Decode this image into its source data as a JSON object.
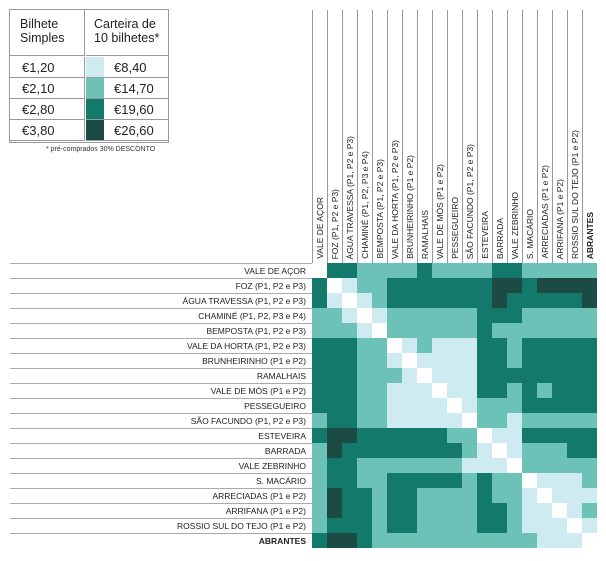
{
  "legend": {
    "header_single": "Bilhete Simples",
    "header_book": "Carteira de 10 bilhetes*",
    "tiers": [
      {
        "single": "€1,20",
        "book": "€8,40",
        "color": "#cdebf0"
      },
      {
        "single": "€2,10",
        "book": "€14,70",
        "color": "#6cc2b6"
      },
      {
        "single": "€2,80",
        "book": "€19,60",
        "color": "#137a6b"
      },
      {
        "single": "€3,80",
        "book": "€26,60",
        "color": "#1c4a45"
      }
    ],
    "note": "* pré-comprados 30% DESCONTO"
  },
  "stations": [
    {
      "label": "VALE DE AÇOR",
      "bold": false
    },
    {
      "label": "FOZ (P1, P2 e P3)",
      "bold": false
    },
    {
      "label": "ÁGUA TRAVESSA (P1, P2 e P3)",
      "bold": false
    },
    {
      "label": "CHAMINÉ (P1, P2, P3 e P4)",
      "bold": false
    },
    {
      "label": "BEMPOSTA (P1, P2 e P3)",
      "bold": false
    },
    {
      "label": "VALE DA HORTA (P1, P2 e P3)",
      "bold": false
    },
    {
      "label": "BRUNHEIRINHO (P1 e P2)",
      "bold": false
    },
    {
      "label": "RAMALHAIS",
      "bold": false
    },
    {
      "label": "VALE DE MÓS (P1 e P2)",
      "bold": false
    },
    {
      "label": "PESSEGUEIRO",
      "bold": false
    },
    {
      "label": "SÃO FACUNDO (P1, P2 e P3)",
      "bold": false
    },
    {
      "label": "ESTEVEIRA",
      "bold": false
    },
    {
      "label": "BARRADA",
      "bold": false
    },
    {
      "label": "VALE ZEBRINHO",
      "bold": false
    },
    {
      "label": "S. MACÁRIO",
      "bold": false
    },
    {
      "label": "ARRECIADAS (P1 e P2)",
      "bold": false
    },
    {
      "label": "ARRIFANA (P1 e P2)",
      "bold": false
    },
    {
      "label": "ROSSIO SUL DO TEJO (P1 e P2)",
      "bold": false
    },
    {
      "label": "ABRANTES",
      "bold": true
    }
  ],
  "fare_matrix": [
    [
      0,
      3,
      3,
      2,
      2,
      2,
      2,
      3,
      2,
      2,
      2,
      2,
      3,
      3,
      2,
      2,
      2,
      2,
      2
    ],
    [
      3,
      0,
      1,
      2,
      2,
      3,
      3,
      3,
      3,
      3,
      3,
      3,
      4,
      4,
      3,
      4,
      4,
      4,
      4
    ],
    [
      3,
      1,
      0,
      1,
      2,
      3,
      3,
      3,
      3,
      3,
      3,
      3,
      4,
      3,
      3,
      3,
      3,
      3,
      4
    ],
    [
      2,
      2,
      1,
      0,
      1,
      2,
      2,
      2,
      2,
      2,
      2,
      3,
      3,
      3,
      2,
      2,
      2,
      2,
      2
    ],
    [
      2,
      2,
      2,
      1,
      0,
      2,
      2,
      2,
      2,
      2,
      2,
      3,
      2,
      2,
      2,
      2,
      2,
      2,
      2
    ],
    [
      3,
      3,
      3,
      2,
      2,
      0,
      1,
      2,
      1,
      1,
      1,
      3,
      3,
      2,
      3,
      3,
      3,
      3,
      3
    ],
    [
      3,
      3,
      3,
      2,
      2,
      1,
      0,
      1,
      1,
      1,
      1,
      3,
      3,
      2,
      3,
      3,
      3,
      3,
      3
    ],
    [
      3,
      3,
      3,
      2,
      2,
      2,
      1,
      0,
      1,
      1,
      1,
      3,
      3,
      3,
      3,
      3,
      3,
      3,
      3
    ],
    [
      3,
      3,
      3,
      2,
      2,
      1,
      1,
      1,
      0,
      1,
      1,
      3,
      3,
      2,
      3,
      2,
      3,
      3,
      3
    ],
    [
      3,
      3,
      3,
      2,
      2,
      1,
      1,
      1,
      1,
      0,
      1,
      2,
      2,
      2,
      3,
      3,
      3,
      3,
      3
    ],
    [
      2,
      3,
      3,
      2,
      2,
      1,
      1,
      1,
      1,
      1,
      0,
      2,
      2,
      1,
      2,
      2,
      2,
      2,
      2
    ],
    [
      3,
      4,
      4,
      3,
      3,
      3,
      3,
      3,
      3,
      2,
      2,
      0,
      1,
      1,
      3,
      3,
      3,
      3,
      3
    ],
    [
      2,
      4,
      3,
      3,
      3,
      3,
      3,
      3,
      3,
      3,
      2,
      1,
      0,
      1,
      2,
      2,
      2,
      3,
      3
    ],
    [
      2,
      3,
      3,
      2,
      2,
      2,
      2,
      2,
      2,
      2,
      1,
      1,
      1,
      0,
      2,
      2,
      2,
      2,
      2
    ],
    [
      2,
      3,
      3,
      2,
      2,
      3,
      3,
      3,
      3,
      3,
      2,
      3,
      2,
      2,
      0,
      1,
      1,
      1,
      2
    ],
    [
      2,
      4,
      3,
      3,
      2,
      3,
      3,
      2,
      2,
      2,
      2,
      3,
      2,
      2,
      1,
      0,
      1,
      1,
      1
    ],
    [
      2,
      4,
      3,
      3,
      2,
      3,
      3,
      2,
      2,
      2,
      2,
      3,
      3,
      2,
      1,
      1,
      0,
      1,
      2
    ],
    [
      2,
      3,
      3,
      3,
      2,
      3,
      3,
      2,
      2,
      2,
      2,
      3,
      3,
      2,
      1,
      1,
      1,
      0,
      1
    ],
    [
      3,
      4,
      4,
      3,
      2,
      2,
      2,
      2,
      2,
      2,
      2,
      2,
      2,
      2,
      2,
      1,
      1,
      1,
      0
    ]
  ]
}
